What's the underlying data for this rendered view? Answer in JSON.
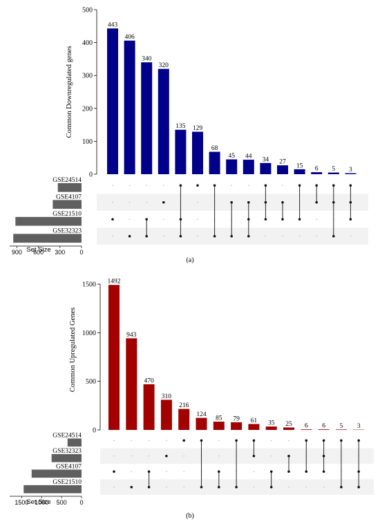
{
  "chart_data": [
    {
      "type": "bar",
      "panel_label": "(a)",
      "ylabel": "Common Downregulated genes",
      "ylim": [
        0,
        500
      ],
      "yticks": [
        0,
        100,
        200,
        300,
        400,
        500
      ],
      "bar_color": "#00008b",
      "values": [
        443,
        406,
        340,
        320,
        135,
        129,
        68,
        45,
        44,
        34,
        27,
        15,
        6,
        5,
        3
      ],
      "set_names": [
        "GSE24514",
        "GSE4107",
        "GSE21510",
        "GSE32323"
      ],
      "set_sizes": [
        330,
        400,
        920,
        950
      ],
      "set_size_label": "Set Size",
      "set_size_ticks": [
        900,
        600,
        300,
        0
      ],
      "set_size_max": 1000,
      "memberships": [
        [
          "GSE21510"
        ],
        [
          "GSE32323"
        ],
        [
          "GSE21510",
          "GSE32323"
        ],
        [
          "GSE4107"
        ],
        [
          "GSE24514",
          "GSE21510",
          "GSE32323"
        ],
        [
          "GSE24514"
        ],
        [
          "GSE24514",
          "GSE32323"
        ],
        [
          "GSE4107",
          "GSE32323"
        ],
        [
          "GSE4107",
          "GSE21510",
          "GSE32323"
        ],
        [
          "GSE24514",
          "GSE4107",
          "GSE21510"
        ],
        [
          "GSE4107",
          "GSE21510"
        ],
        [
          "GSE24514",
          "GSE21510"
        ],
        [
          "GSE24514",
          "GSE4107"
        ],
        [
          "GSE24514",
          "GSE4107",
          "GSE32323"
        ],
        [
          "GSE24514",
          "GSE4107",
          "GSE21510"
        ]
      ]
    },
    {
      "type": "bar",
      "panel_label": "(b)",
      "ylabel": "Common Upregulated Genes",
      "ylim": [
        0,
        1650
      ],
      "yticks": [
        0,
        500,
        1000,
        1500
      ],
      "bar_color": "#a30000",
      "values": [
        1492,
        943,
        470,
        310,
        216,
        124,
        85,
        79,
        61,
        35,
        25,
        6,
        6,
        5,
        3
      ],
      "set_names": [
        "GSE24514",
        "GSE32323",
        "GSE4107",
        "GSE21510"
      ],
      "set_sizes": [
        350,
        750,
        1250,
        1450
      ],
      "set_size_label": "Set Size",
      "set_size_ticks": [
        1500,
        1000,
        500,
        0
      ],
      "set_size_max": 1800,
      "memberships": [
        [
          "GSE4107"
        ],
        [
          "GSE21510"
        ],
        [
          "GSE4107",
          "GSE21510"
        ],
        [
          "GSE32323"
        ],
        [
          "GSE24514"
        ],
        [
          "GSE24514",
          "GSE21510"
        ],
        [
          "GSE4107",
          "GSE21510"
        ],
        [
          "GSE24514",
          "GSE21510"
        ],
        [
          "GSE24514",
          "GSE32323"
        ],
        [
          "GSE4107",
          "GSE21510"
        ],
        [
          "GSE32323",
          "GSE4107"
        ],
        [
          "GSE24514",
          "GSE4107"
        ],
        [
          "GSE24514",
          "GSE32323",
          "GSE4107"
        ],
        [
          "GSE24514",
          "GSE21510"
        ],
        [
          "GSE24514",
          "GSE4107",
          "GSE21510"
        ]
      ]
    }
  ]
}
